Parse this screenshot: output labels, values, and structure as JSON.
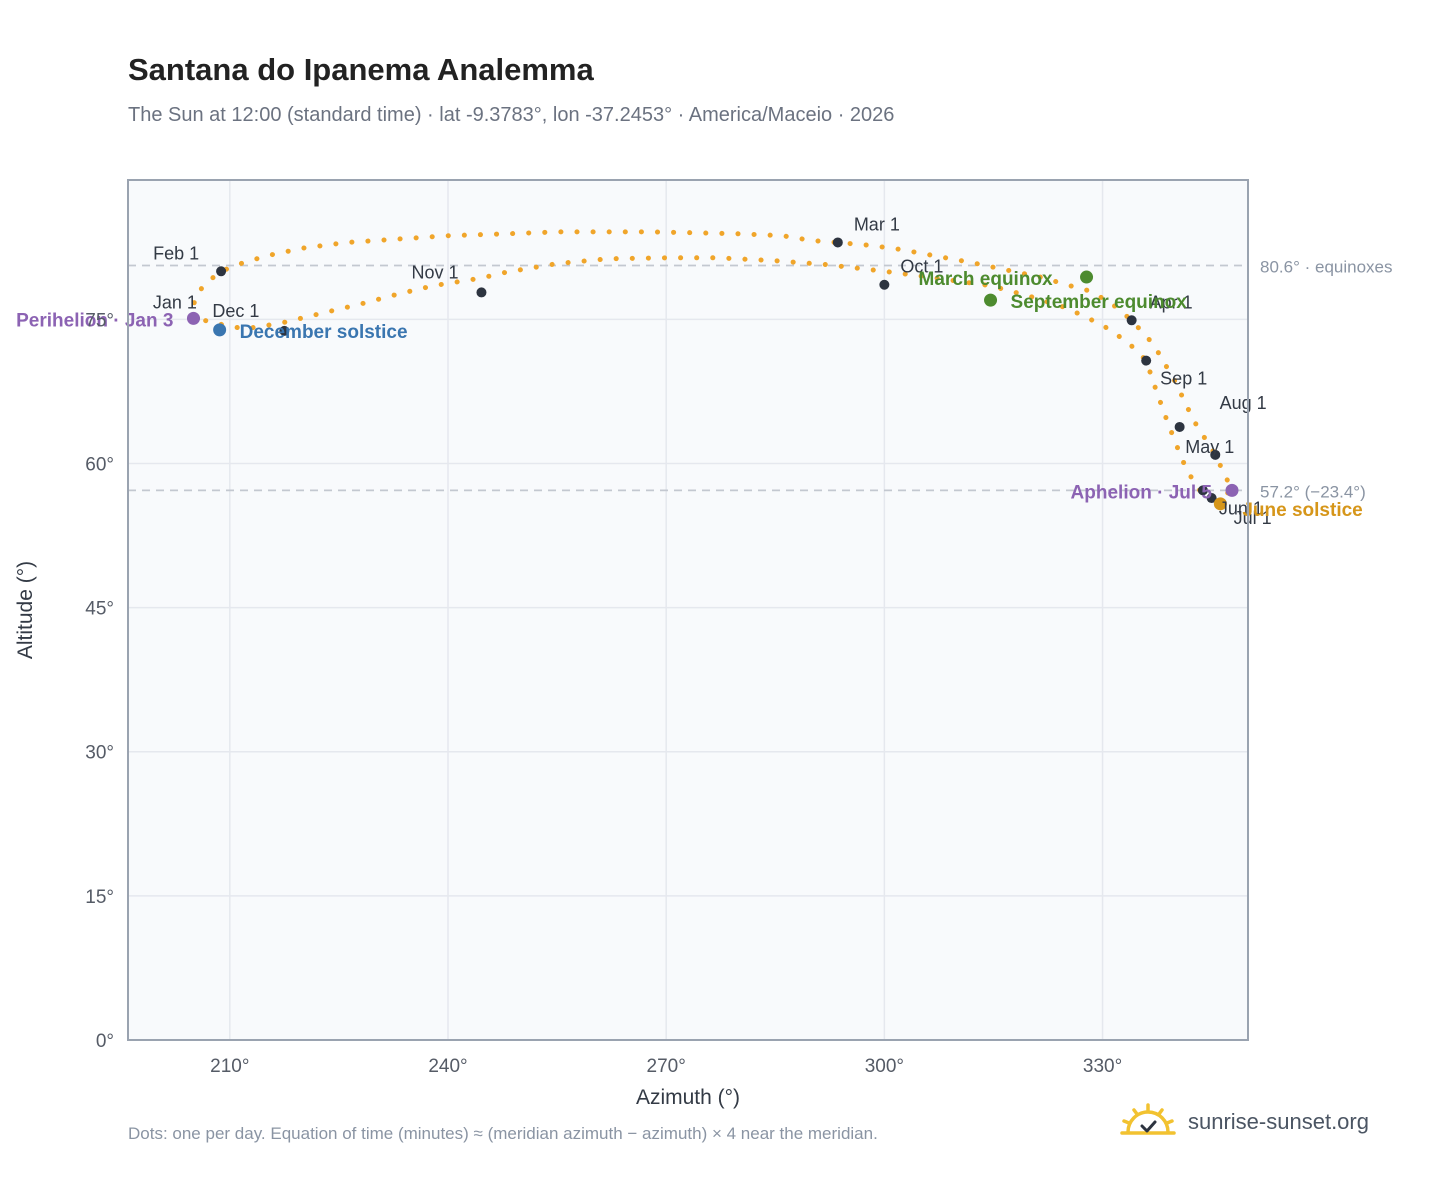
{
  "title": "Santana do Ipanema Analemma",
  "subtitle": "The Sun at 12:00 (standard time) · lat -9.3783°, lon -37.2453° · America/Maceio · 2026",
  "footnote": "Dots: one per day. Equation of time (minutes) ≈ (meridian azimuth − azimuth) × 4 near the meridian.",
  "brand": {
    "text": "sunrise-sunset.org",
    "icon": "sun-logo-icon"
  },
  "colors": {
    "path": "#f0a52a",
    "month_marker": "#2d3440",
    "equinox": "#4d8b2f",
    "december_solstice": "#3a76b0",
    "june_solstice": "#d6961a",
    "perihelion_aphelion": "#8c63b3",
    "plot_bg": "#f8fafc",
    "grid": "#e5e8ee",
    "reference_line": "#c3c8d0"
  },
  "chart_data": {
    "type": "scatter",
    "xlabel": "Azimuth (°)",
    "ylabel": "Altitude (°)",
    "xlim": [
      196,
      350
    ],
    "ylim": [
      0,
      89.5
    ],
    "xticks": [
      210,
      240,
      270,
      300,
      330
    ],
    "xtick_labels": [
      "210°",
      "240°",
      "270°",
      "300°",
      "330°"
    ],
    "yticks": [
      0,
      15,
      30,
      45,
      60,
      75
    ],
    "ytick_labels": [
      "0°",
      "15°",
      "30°",
      "45°",
      "60°",
      "75°"
    ],
    "grid": true,
    "analemma_path": [
      [
        205.2,
        75.1
      ],
      [
        204.9,
        76.0
      ],
      [
        205.3,
        77.4
      ],
      [
        206.6,
        78.7
      ],
      [
        208.8,
        80.0
      ],
      [
        211.5,
        80.8
      ],
      [
        215.0,
        81.6
      ],
      [
        220.0,
        82.4
      ],
      [
        226.0,
        83.0
      ],
      [
        232.0,
        83.3
      ],
      [
        240.0,
        83.7
      ],
      [
        248.0,
        83.9
      ],
      [
        255.0,
        84.1
      ],
      [
        262.0,
        84.1
      ],
      [
        268.0,
        84.1
      ],
      [
        274.0,
        84.0
      ],
      [
        280.0,
        83.9
      ],
      [
        286.0,
        83.7
      ],
      [
        290.0,
        83.2
      ],
      [
        293.6,
        83.0
      ],
      [
        298.0,
        82.7
      ],
      [
        302.0,
        82.3
      ],
      [
        307.0,
        81.6
      ],
      [
        312.0,
        80.9
      ],
      [
        317.0,
        80.1
      ],
      [
        322.0,
        79.3
      ],
      [
        325.0,
        78.6
      ],
      [
        328.0,
        78.0
      ],
      [
        331.0,
        76.8
      ],
      [
        334.0,
        74.9
      ],
      [
        337.0,
        72.4
      ],
      [
        340.0,
        68.5
      ],
      [
        342.5,
        64.5
      ],
      [
        345.5,
        60.9
      ],
      [
        347.0,
        58.5
      ],
      [
        347.8,
        57.3
      ],
      [
        347.0,
        56.8
      ],
      [
        345.2,
        56.3
      ],
      [
        343.0,
        57.4
      ],
      [
        341.2,
        60.0
      ],
      [
        340.0,
        62.2
      ],
      [
        338.6,
        65.0
      ],
      [
        337.2,
        68.0
      ],
      [
        336.0,
        70.7
      ],
      [
        333.5,
        72.6
      ],
      [
        330.0,
        74.4
      ],
      [
        325.0,
        76.2
      ],
      [
        320.0,
        77.4
      ],
      [
        314.6,
        78.5
      ],
      [
        307.0,
        79.3
      ],
      [
        300.0,
        80.0
      ],
      [
        292.0,
        80.7
      ],
      [
        285.0,
        81.1
      ],
      [
        277.0,
        81.4
      ],
      [
        270.0,
        81.4
      ],
      [
        262.0,
        81.3
      ],
      [
        255.0,
        80.8
      ],
      [
        248.0,
        79.9
      ],
      [
        244.6,
        79.3
      ],
      [
        238.0,
        78.5
      ],
      [
        233.0,
        77.6
      ],
      [
        228.0,
        76.6
      ],
      [
        223.0,
        75.7
      ],
      [
        217.0,
        74.6
      ],
      [
        212.0,
        74.0
      ],
      [
        208.0,
        74.6
      ],
      [
        206.0,
        75.0
      ],
      [
        205.2,
        75.1
      ]
    ],
    "month_markers": [
      {
        "label": "Jan 1",
        "x": 205.2,
        "y": 75.1
      },
      {
        "label": "Feb 1",
        "x": 208.8,
        "y": 80.0
      },
      {
        "label": "Mar 1",
        "x": 293.6,
        "y": 83.0
      },
      {
        "label": "Apr 1",
        "x": 334.0,
        "y": 74.9
      },
      {
        "label": "May 1",
        "x": 345.5,
        "y": 60.9
      },
      {
        "label": "Jun 1",
        "x": 343.8,
        "y": 57.2
      },
      {
        "label": "Jul 1",
        "x": 345.0,
        "y": 56.4
      },
      {
        "label": "Aug 1",
        "x": 340.6,
        "y": 63.8
      },
      {
        "label": "Sep 1",
        "x": 336.0,
        "y": 70.7
      },
      {
        "label": "Oct 1",
        "x": 300.0,
        "y": 78.6
      },
      {
        "label": "Nov 1",
        "x": 244.6,
        "y": 77.8
      },
      {
        "label": "Dec 1",
        "x": 217.5,
        "y": 73.8
      }
    ],
    "events": [
      {
        "label": "March equinox",
        "x": 327.8,
        "y": 79.4,
        "kind": "equinox"
      },
      {
        "label": "September equinox",
        "x": 314.6,
        "y": 77.0,
        "kind": "equinox"
      },
      {
        "label": "June solstice",
        "x": 346.2,
        "y": 55.8,
        "kind": "june_solstice"
      },
      {
        "label": "December solstice",
        "x": 208.6,
        "y": 73.9,
        "kind": "december_solstice"
      },
      {
        "label": "Perihelion · Jan 3",
        "x": 205.0,
        "y": 75.1,
        "kind": "perihelion_aphelion"
      },
      {
        "label": "Aphelion · Jul 5",
        "x": 347.8,
        "y": 57.2,
        "kind": "perihelion_aphelion"
      }
    ],
    "reference_lines": [
      {
        "y": 80.6,
        "label": "80.6° · equinoxes"
      },
      {
        "y": 57.2,
        "label": "57.2° (−23.4°)"
      }
    ]
  }
}
